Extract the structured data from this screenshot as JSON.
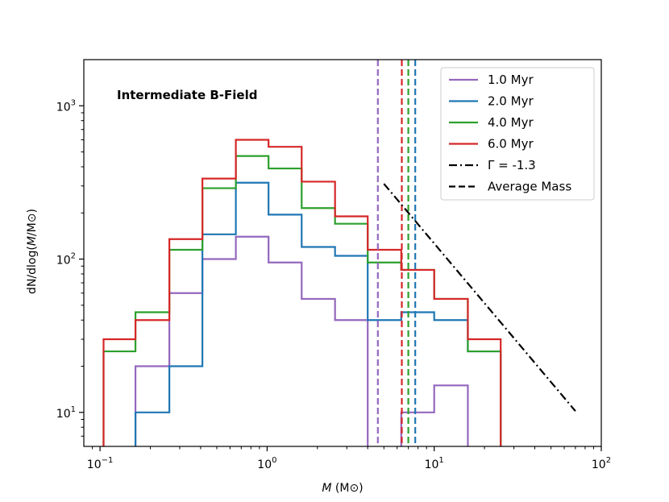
{
  "chart_data": {
    "type": "step",
    "title": "",
    "annotation": "Intermediate B-Field",
    "xscale": "log",
    "yscale": "log",
    "xlim": [
      0.08,
      100
    ],
    "ylim": [
      6,
      2000
    ],
    "xlabel": "M (M⊙)",
    "xlabel_var": "M",
    "xlabel_unit": " (M⊙)",
    "ylabel": "dN/dlog(M/M⊙)",
    "ylabel_parts": [
      "dN/dlog(",
      "M",
      "/M⊙)"
    ],
    "xticks": [
      {
        "value": 0.1,
        "base": "10",
        "exp": "−1"
      },
      {
        "value": 1,
        "base": "10",
        "exp": "0"
      },
      {
        "value": 10,
        "base": "10",
        "exp": "1"
      },
      {
        "value": 100,
        "base": "10",
        "exp": "2"
      }
    ],
    "yticks": [
      {
        "value": 10,
        "base": "10",
        "exp": "1"
      },
      {
        "value": 100,
        "base": "10",
        "exp": "2"
      },
      {
        "value": 1000,
        "base": "10",
        "exp": "3"
      }
    ],
    "bin_edges": [
      0.105,
      0.163,
      0.26,
      0.41,
      0.65,
      1.02,
      1.61,
      2.55,
      4.0,
      6.35,
      10.0,
      15.9,
      25.0
    ],
    "series": [
      {
        "name": "1.0 Myr",
        "color": "#9467bd",
        "values": [
          null,
          20,
          60,
          100,
          140,
          95,
          55,
          40,
          null,
          10,
          15,
          null
        ]
      },
      {
        "name": "2.0 Myr",
        "color": "#1f77b4",
        "values": [
          null,
          10,
          20,
          145,
          315,
          195,
          120,
          105,
          40,
          45,
          40,
          25
        ]
      },
      {
        "name": "4.0 Myr",
        "color": "#2ca02c",
        "values": [
          25,
          45,
          115,
          290,
          470,
          390,
          215,
          170,
          95,
          85,
          55,
          25
        ]
      },
      {
        "name": "6.0 Myr",
        "color": "#d62728",
        "values": [
          30,
          40,
          135,
          335,
          600,
          540,
          320,
          190,
          115,
          85,
          55,
          30
        ]
      }
    ],
    "average_mass": [
      {
        "series": "1.0 Myr",
        "value": 4.6,
        "color": "#9467bd"
      },
      {
        "series": "6.0 Myr",
        "value": 6.4,
        "color": "#d62728"
      },
      {
        "series": "4.0 Myr",
        "value": 7.0,
        "color": "#2ca02c"
      },
      {
        "series": "2.0 Myr",
        "value": 7.7,
        "color": "#1f77b4"
      }
    ],
    "power_law": {
      "label": "Γ = -1.3",
      "x": [
        5.0,
        70.0
      ],
      "y": [
        310,
        10.2
      ]
    },
    "legend": {
      "placement": "top-right",
      "entries": [
        {
          "label": "1.0 Myr",
          "style": "solid",
          "color": "#9467bd"
        },
        {
          "label": "2.0 Myr",
          "style": "solid",
          "color": "#1f77b4"
        },
        {
          "label": "4.0 Myr",
          "style": "solid",
          "color": "#2ca02c"
        },
        {
          "label": "6.0 Myr",
          "style": "solid",
          "color": "#d62728"
        },
        {
          "label": "Γ = -1.3",
          "style": "dashdot",
          "color": "#000000"
        },
        {
          "label": "Average Mass",
          "style": "dashed",
          "color": "#000000"
        }
      ]
    }
  }
}
